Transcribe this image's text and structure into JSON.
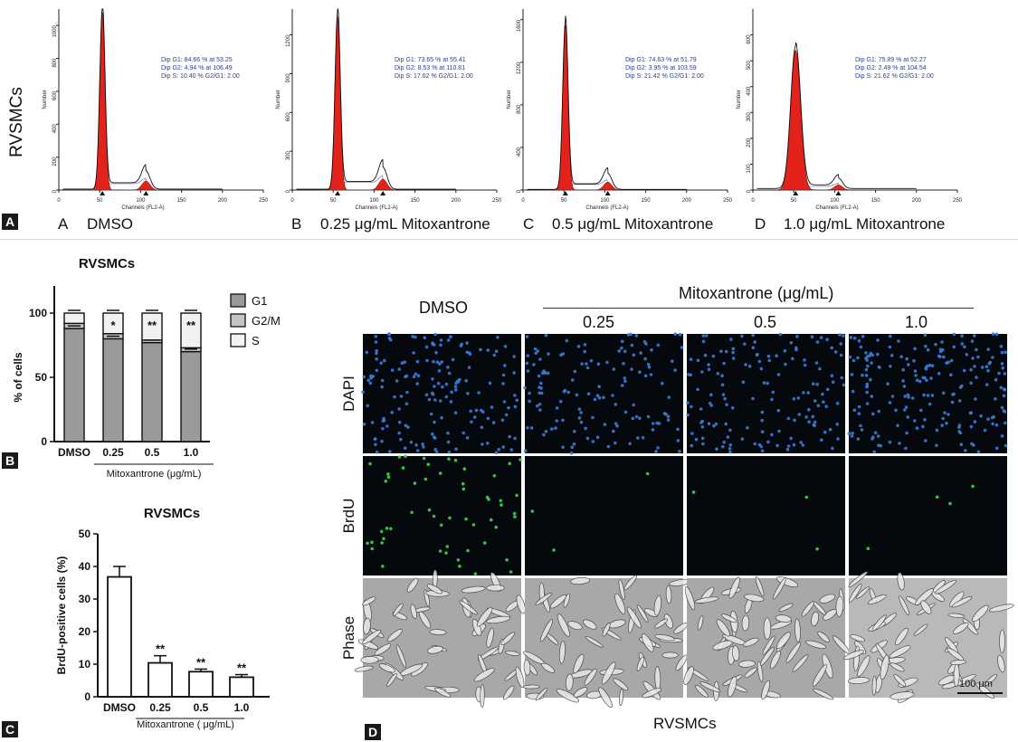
{
  "figure": {
    "panel_tags": [
      "A",
      "B",
      "C",
      "D"
    ],
    "row_label": "RVSMCs"
  },
  "chart_data": [
    {
      "type": "area",
      "panel": "A",
      "caption_letter": "A",
      "caption": "DMSO",
      "xlabel": "Channels (FL2-A)",
      "ylabel": "Number",
      "xlim": [
        0,
        250
      ],
      "ylim": [
        0,
        1100
      ],
      "xticks": [
        0,
        50,
        100,
        150,
        200,
        250
      ],
      "yticks": [
        0,
        200,
        400,
        600,
        800,
        1000
      ],
      "g1_peak": 53.25,
      "g1_height": 1080,
      "g2_peak": 106.49,
      "g2_height": 110,
      "stats": [
        "Dip G1: 84.66 % at 53.25",
        "Dip G2: 4.94 % at 106.49",
        "Dip S: 10.40 %   G2/G1: 2.00"
      ]
    },
    {
      "type": "area",
      "panel": "A",
      "caption_letter": "B",
      "caption": "0.25 μg/mL Mitoxantrone",
      "xlabel": "Channels (FL2-A)",
      "ylabel": "Number",
      "xlim": [
        0,
        250
      ],
      "ylim": [
        0,
        1400
      ],
      "xticks": [
        0,
        50,
        100,
        150,
        200,
        250
      ],
      "yticks": [
        0,
        300,
        600,
        900,
        1200
      ],
      "g1_peak": 55.41,
      "g1_height": 1340,
      "g2_peak": 110.81,
      "g2_height": 170,
      "stats": [
        "Dip G1: 73.65 % at 55.41",
        "Dip G2: 8.53 % at 110.81",
        "Dip S: 17.62 %   G2/G1: 2.00"
      ]
    },
    {
      "type": "area",
      "panel": "A",
      "caption_letter": "C",
      "caption": "0.5 μg/mL Mitoxantrone",
      "xlabel": "Channels (FL2-A)",
      "ylabel": "Number",
      "xlim": [
        0,
        250
      ],
      "ylim": [
        0,
        1700
      ],
      "xticks": [
        0,
        50,
        100,
        150,
        200,
        250
      ],
      "yticks": [
        0,
        400,
        800,
        1200,
        1600
      ],
      "g1_peak": 51.79,
      "g1_height": 1550,
      "g2_peak": 103.59,
      "g2_height": 150,
      "stats": [
        "Dip G1: 74.63 % at 51.79",
        "Dip G2: 3.95 % at 103.59",
        "Dip S: 21.42 %   G2/G1: 2.00"
      ]
    },
    {
      "type": "area",
      "panel": "A",
      "caption_letter": "D",
      "caption": "1.0 μg/mL Mitoxantrone",
      "xlabel": "Channels (FL2-A)",
      "ylabel": "Number",
      "xlim": [
        0,
        250
      ],
      "ylim": [
        0,
        700
      ],
      "xticks": [
        0,
        50,
        100,
        150,
        200,
        250
      ],
      "yticks": [
        0,
        100,
        200,
        300,
        400,
        500,
        600
      ],
      "g1_peak": 52.27,
      "g1_height": 540,
      "g2_peak": 104.54,
      "g2_height": 40,
      "stats": [
        "Dip G1: 75.89 % at 52.27",
        "Dip G2: 2.49 % at 104.54",
        "Dip S: 21.62 %   G2/G1: 2.00"
      ]
    },
    {
      "type": "bar",
      "panel": "B",
      "stacked": true,
      "title": "RVSMCs",
      "ylabel": "% of cells",
      "xlabel": "Mitoxantrone (μg/mL)",
      "categories": [
        "DMSO",
        "0.25",
        "0.5",
        "1.0"
      ],
      "ylim": [
        0,
        100
      ],
      "yticks": [
        0,
        50,
        100
      ],
      "series": [
        {
          "name": "G1",
          "values": [
            88,
            80,
            77,
            70
          ],
          "color": "#9a9a9a"
        },
        {
          "name": "G2/M",
          "values": [
            4,
            4,
            2,
            3
          ],
          "color": "#c4c4c4"
        },
        {
          "name": "S",
          "values": [
            8,
            16,
            21,
            27
          ],
          "color": "#f2f2f2"
        }
      ],
      "legend": [
        "G1",
        "G2/M",
        "S"
      ],
      "annotations": [
        "",
        "*",
        "**",
        "**"
      ]
    },
    {
      "type": "bar",
      "panel": "C",
      "title": "RVSMCs",
      "ylabel": "BrdU-positive cells (%)",
      "xlabel": "Mitoxantrone ( μg/mL)",
      "categories": [
        "DMSO",
        "0.25",
        "0.5",
        "1.0"
      ],
      "values": [
        36.8,
        10.4,
        7.7,
        6.0
      ],
      "errors": [
        3.2,
        2.2,
        0.8,
        0.8
      ],
      "ylim": [
        0,
        50
      ],
      "yticks": [
        0,
        10,
        20,
        30,
        40,
        50
      ],
      "annotations": [
        "",
        "**",
        "**",
        "**"
      ]
    }
  ],
  "micrographs": {
    "header_left": "DMSO",
    "header_group": "Mitoxantrone (μg/mL)",
    "concentrations": [
      "0.25",
      "0.5",
      "1.0"
    ],
    "rows": [
      "DAPI",
      "BrdU",
      "Phase"
    ],
    "scale_bar": "100 μm",
    "bottom_label": "RVSMCs",
    "dapi_color": "#3a7bd5",
    "brdu_color": "#3bd64a"
  }
}
